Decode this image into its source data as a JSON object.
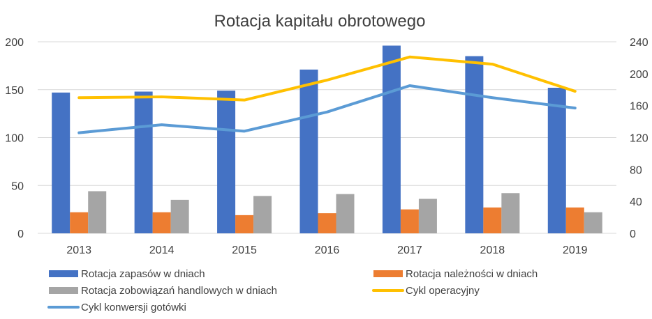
{
  "chart_data": {
    "type": "bar",
    "title": "Rotacja kapitału obrotowego",
    "categories": [
      "2013",
      "2014",
      "2015",
      "2016",
      "2017",
      "2018",
      "2019"
    ],
    "y_left": {
      "ylim": [
        0,
        200
      ],
      "ticks": [
        "0",
        "50",
        "100",
        "150",
        "200"
      ]
    },
    "y_right": {
      "ylim": [
        0,
        240
      ],
      "ticks": [
        "0",
        "40",
        "80",
        "120",
        "160",
        "200",
        "240"
      ]
    },
    "grid": true,
    "legend_position": "bottom",
    "series": [
      {
        "name": "Rotacja zapasów w dniach",
        "kind": "bar",
        "axis": "left",
        "color": "#4472C4",
        "values": [
          147,
          148,
          149,
          171,
          196,
          185,
          152
        ]
      },
      {
        "name": "Rotacja należności w dniach",
        "kind": "bar",
        "axis": "left",
        "color": "#ED7D31",
        "values": [
          22,
          22,
          19,
          21,
          25,
          27,
          27
        ]
      },
      {
        "name": "Rotacja zobowiązań handlowych w dniach",
        "kind": "bar",
        "axis": "left",
        "color": "#A5A5A5",
        "values": [
          44,
          35,
          39,
          41,
          36,
          42,
          22
        ]
      },
      {
        "name": "Cykl operacyjny",
        "kind": "line",
        "axis": "right",
        "color": "#FFC000",
        "values": [
          170,
          171,
          167,
          192,
          221,
          212,
          178
        ]
      },
      {
        "name": "Cykl konwersji gotówki",
        "kind": "line",
        "axis": "right",
        "color": "#5B9BD5",
        "values": [
          126,
          136,
          128,
          152,
          185,
          170,
          157
        ]
      }
    ]
  }
}
